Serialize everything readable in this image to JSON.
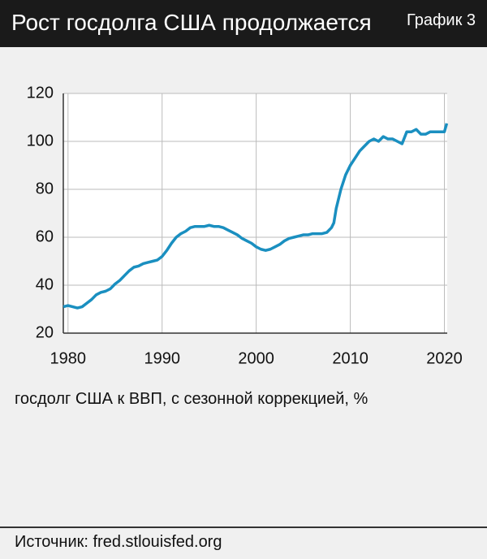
{
  "chart_data": {
    "type": "line",
    "title": "Рост госдолга США продолжается",
    "figure_label": "График 3",
    "ylabel": "госдолг США к ВВП, с сезонной коррекцией, %",
    "source": "Источник: fred.stlouisfed.org",
    "x": [
      1979.5,
      1980,
      1980.5,
      1981,
      1981.5,
      1982,
      1982.5,
      1983,
      1983.5,
      1984,
      1984.5,
      1985,
      1985.5,
      1986,
      1986.5,
      1987,
      1987.5,
      1988,
      1988.5,
      1989,
      1989.5,
      1990,
      1990.5,
      1991,
      1991.5,
      1992,
      1992.5,
      1993,
      1993.5,
      1994,
      1994.5,
      1995,
      1995.5,
      1996,
      1996.5,
      1997,
      1997.5,
      1998,
      1998.5,
      1999,
      1999.5,
      2000,
      2000.5,
      2001,
      2001.5,
      2002,
      2002.5,
      2003,
      2003.5,
      2004,
      2004.5,
      2005,
      2005.5,
      2006,
      2006.5,
      2007,
      2007.5,
      2008,
      2008.25,
      2008.5,
      2008.75,
      2009,
      2009.5,
      2010,
      2010.5,
      2011,
      2011.5,
      2012,
      2012.5,
      2013,
      2013.5,
      2014,
      2014.5,
      2015,
      2015.5,
      2016,
      2016.5,
      2017,
      2017.5,
      2018,
      2018.5,
      2019,
      2019.5,
      2020,
      2020.25
    ],
    "series": [
      {
        "name": "госдолг США к ВВП",
        "color": "#1a8fc0",
        "values": [
          31,
          31.5,
          31,
          30.5,
          31,
          32.5,
          34,
          36,
          37,
          37.5,
          38.5,
          40.5,
          42,
          44,
          46,
          47.5,
          48,
          49,
          49.5,
          50,
          50.5,
          52,
          54.5,
          57.5,
          60,
          61.5,
          62.5,
          64,
          64.5,
          64.5,
          64.5,
          65,
          64.5,
          64.5,
          64,
          63,
          62,
          61,
          59.5,
          58.5,
          57.5,
          56,
          55,
          54.5,
          55,
          56,
          57,
          58.5,
          59.5,
          60,
          60.5,
          61,
          61,
          61.5,
          61.5,
          61.5,
          62,
          64,
          66,
          72,
          76,
          80,
          86,
          90,
          93,
          96,
          98,
          100,
          101,
          100,
          102,
          101,
          101,
          100,
          99,
          104,
          104,
          105,
          103,
          103,
          104,
          104,
          104,
          104,
          107.5
        ]
      }
    ],
    "xlim": [
      1979.5,
      2020.3
    ],
    "ylim": [
      20,
      120
    ],
    "xticks": [
      1980,
      1990,
      2000,
      2010,
      2020
    ],
    "yticks": [
      20,
      40,
      60,
      80,
      100,
      120
    ],
    "grid": true
  }
}
